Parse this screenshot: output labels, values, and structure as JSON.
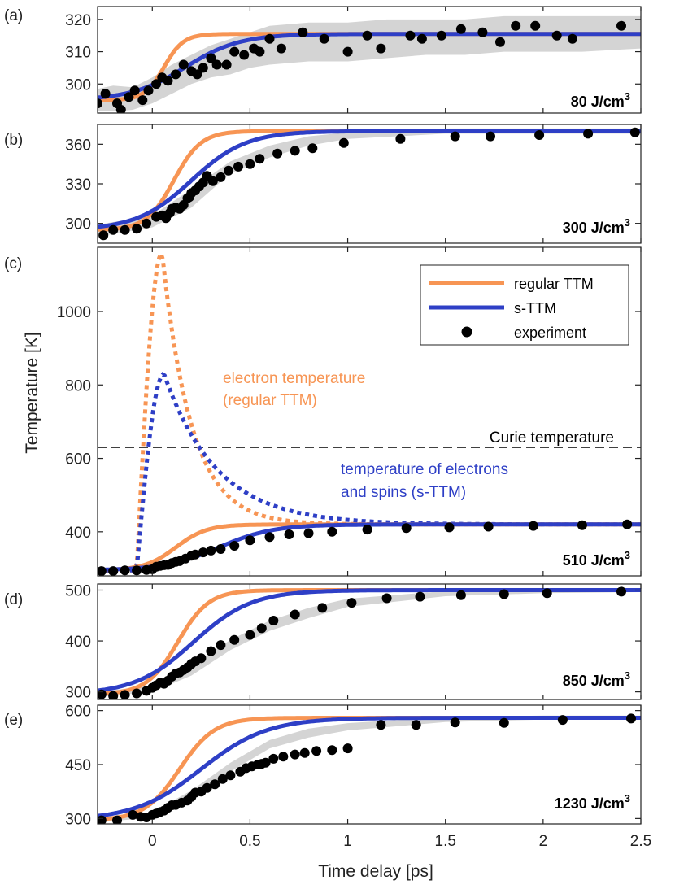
{
  "colors": {
    "ttm": "#f79554",
    "sttm": "#2e3fc6",
    "experiment": "#000000",
    "band": "#d4d4d4",
    "curie": "#000000"
  },
  "xaxis": {
    "label": "Time delay [ps]",
    "range": [
      -0.28,
      2.5
    ],
    "ticks": [
      0,
      0.5,
      1,
      1.5,
      2,
      2.5
    ],
    "tick_labels": [
      "0",
      "0.5",
      "1",
      "1.5",
      "2",
      "2.5"
    ]
  },
  "yaxis_label": "Temperature [K]",
  "legend": {
    "items": [
      {
        "label": "regular TTM",
        "kind": "ttm"
      },
      {
        "label": "s-TTM",
        "kind": "sttm"
      },
      {
        "label": "experiment",
        "kind": "experiment"
      }
    ]
  },
  "chart_data": [
    {
      "type": "line",
      "panel_label": "(a)",
      "fluence_label": "80 J/cm",
      "fluence_sup": "3",
      "ylim": [
        291,
        324
      ],
      "y_ticks": [
        300,
        310,
        320
      ],
      "y_tick_labels": [
        "300",
        "310",
        "320"
      ],
      "ttm": {
        "base": 295,
        "peak": 315.5,
        "t0": 0.06,
        "w": 0.05
      },
      "sttm": {
        "base": 295,
        "peak": 315.5,
        "t0": 0.17,
        "w": 0.14
      },
      "band": {
        "x": [
          -0.28,
          -0.2,
          -0.1,
          0,
          0.1,
          0.2,
          0.3,
          0.4,
          0.5,
          0.6,
          0.8,
          1.0,
          1.2,
          1.4,
          1.6,
          1.8,
          2.0,
          2.2,
          2.5
        ],
        "lower": [
          291.5,
          291.5,
          292,
          294,
          297,
          300,
          302,
          303,
          305,
          306,
          307,
          307,
          308,
          309,
          309,
          310,
          310,
          310,
          311
        ],
        "upper": [
          298.5,
          299.5,
          299,
          302,
          306,
          309,
          312,
          314,
          316,
          318,
          319,
          319,
          320,
          320,
          320,
          321,
          321,
          321,
          321
        ]
      },
      "experiment": {
        "x": [
          -0.28,
          -0.24,
          -0.18,
          -0.16,
          -0.12,
          -0.09,
          -0.05,
          -0.02,
          0.02,
          0.05,
          0.08,
          0.12,
          0.16,
          0.2,
          0.23,
          0.26,
          0.3,
          0.33,
          0.38,
          0.42,
          0.47,
          0.52,
          0.55,
          0.6,
          0.66,
          0.77,
          0.88,
          1.0,
          1.1,
          1.17,
          1.32,
          1.38,
          1.48,
          1.58,
          1.69,
          1.78,
          1.86,
          1.96,
          2.07,
          2.15,
          2.4
        ],
        "y": [
          294,
          297,
          294,
          292,
          296,
          298,
          295,
          298,
          300,
          302,
          301,
          303,
          306,
          304,
          303,
          305,
          308,
          306,
          306,
          310,
          309,
          311,
          310,
          314,
          311,
          316,
          314,
          310,
          315,
          311,
          315,
          314,
          315,
          317,
          316,
          313,
          318,
          318,
          315,
          314,
          318
        ]
      }
    },
    {
      "type": "line",
      "panel_label": "(b)",
      "fluence_label": "300 J/cm",
      "fluence_sup": "3",
      "ylim": [
        285,
        375
      ],
      "y_ticks": [
        300,
        330,
        360
      ],
      "y_tick_labels": [
        "300",
        "330",
        "360"
      ],
      "ttm": {
        "base": 295,
        "peak": 370,
        "t0": 0.11,
        "w": 0.07
      },
      "sttm": {
        "base": 295,
        "peak": 370,
        "t0": 0.2,
        "w": 0.14
      },
      "band": {
        "x": [
          -0.28,
          0,
          0.2,
          0.4,
          0.6,
          0.8,
          1.0,
          1.5,
          2.0,
          2.5
        ],
        "lower": [
          290,
          297,
          312,
          338,
          350,
          359,
          364,
          368,
          368,
          368
        ],
        "upper": [
          299,
          306,
          326,
          347,
          359,
          366,
          369,
          372,
          372,
          372
        ]
      },
      "experiment": {
        "x": [
          -0.25,
          -0.2,
          -0.14,
          -0.08,
          -0.03,
          0.02,
          0.05,
          0.07,
          0.09,
          0.1,
          0.12,
          0.14,
          0.16,
          0.18,
          0.19,
          0.2,
          0.22,
          0.24,
          0.26,
          0.28,
          0.31,
          0.35,
          0.39,
          0.44,
          0.5,
          0.55,
          0.64,
          0.73,
          0.82,
          0.98,
          1.27,
          1.55,
          1.73,
          1.98,
          2.23,
          2.47
        ],
        "y": [
          291,
          295,
          295,
          296,
          300,
          305,
          306,
          304,
          308,
          311,
          312,
          311,
          314,
          319,
          320,
          323,
          325,
          328,
          331,
          336,
          332,
          335,
          340,
          343,
          345,
          349,
          353,
          355,
          357,
          361,
          364,
          366,
          366,
          367,
          368,
          369
        ]
      }
    },
    {
      "type": "line",
      "panel_label": "(c)",
      "fluence_label": "510 J/cm",
      "fluence_sup": "3",
      "ylim": [
        280,
        1175
      ],
      "y_ticks": [
        400,
        600,
        800,
        1000
      ],
      "y_tick_labels": [
        "400",
        "600",
        "800",
        "1000"
      ],
      "ttm": {
        "base": 295,
        "peak": 420,
        "t0": 0.12,
        "w": 0.08
      },
      "sttm": {
        "base": 295,
        "peak": 420,
        "t0": 0.34,
        "w": 0.14
      },
      "electron_ttm": {
        "base": 295,
        "final": 420,
        "peak": 1160,
        "t_start": -0.08,
        "t_peak": 0.05,
        "tau": 0.15
      },
      "electron_sttm": {
        "base": 295,
        "final": 420,
        "peak": 830,
        "t_start": -0.08,
        "t_peak": 0.06,
        "tau": 0.27
      },
      "curie_temperature": 630,
      "curie_label": "Curie temperature",
      "annotations": {
        "electron_ttm_1": "electron temperature",
        "electron_ttm_2": "(regular TTM)",
        "electron_sttm_1": "temperature of electrons",
        "electron_sttm_2": "and spins (s-TTM)"
      },
      "experiment": {
        "x": [
          -0.26,
          -0.2,
          -0.14,
          -0.08,
          -0.03,
          0.0,
          0.02,
          0.04,
          0.06,
          0.08,
          0.1,
          0.12,
          0.14,
          0.17,
          0.2,
          0.22,
          0.26,
          0.3,
          0.35,
          0.42,
          0.5,
          0.6,
          0.7,
          0.8,
          0.92,
          1.1,
          1.3,
          1.52,
          1.72,
          1.95,
          2.2,
          2.43
        ],
        "y": [
          293,
          293,
          295,
          295,
          296,
          298,
          305,
          307,
          309,
          310,
          315,
          318,
          320,
          327,
          335,
          338,
          344,
          349,
          353,
          362,
          377,
          386,
          393,
          396,
          400,
          406,
          410,
          412,
          414,
          416,
          418,
          420
        ]
      }
    },
    {
      "type": "line",
      "panel_label": "(d)",
      "fluence_label": "850 J/cm",
      "fluence_sup": "3",
      "ylim": [
        285,
        512
      ],
      "y_ticks": [
        300,
        400,
        500
      ],
      "y_tick_labels": [
        "300",
        "400",
        "500"
      ],
      "ttm": {
        "base": 295,
        "peak": 500,
        "t0": 0.13,
        "w": 0.08
      },
      "sttm": {
        "base": 295,
        "peak": 500,
        "t0": 0.21,
        "w": 0.15
      },
      "band": {
        "x": [
          -0.28,
          0,
          0.2,
          0.4,
          0.6,
          0.8,
          1.0,
          1.5,
          2.0,
          2.5
        ],
        "lower": [
          290,
          300,
          332,
          382,
          420,
          445,
          467,
          488,
          494,
          496
        ],
        "upper": [
          300,
          312,
          352,
          402,
          440,
          465,
          483,
          498,
          502,
          502
        ]
      },
      "experiment": {
        "x": [
          -0.26,
          -0.2,
          -0.14,
          -0.08,
          -0.03,
          0.0,
          0.02,
          0.04,
          0.06,
          0.08,
          0.1,
          0.12,
          0.14,
          0.16,
          0.18,
          0.2,
          0.22,
          0.25,
          0.3,
          0.35,
          0.42,
          0.5,
          0.56,
          0.62,
          0.73,
          0.87,
          1.02,
          1.2,
          1.37,
          1.58,
          1.8,
          2.02,
          2.4
        ],
        "y": [
          295,
          292,
          294,
          297,
          302,
          308,
          313,
          318,
          316,
          322,
          330,
          336,
          338,
          343,
          348,
          355,
          360,
          366,
          380,
          392,
          402,
          412,
          425,
          440,
          452,
          465,
          475,
          484,
          487,
          490,
          492,
          494,
          497
        ]
      }
    },
    {
      "type": "line",
      "panel_label": "(e)",
      "fluence_label": "1230 J/cm",
      "fluence_sup": "3",
      "ylim": [
        285,
        615
      ],
      "y_ticks": [
        300,
        450,
        600
      ],
      "y_tick_labels": [
        "300",
        "450",
        "600"
      ],
      "ttm": {
        "base": 295,
        "peak": 580,
        "t0": 0.14,
        "w": 0.09
      },
      "sttm": {
        "base": 295,
        "peak": 580,
        "t0": 0.25,
        "w": 0.17
      },
      "band": {
        "x": [
          -0.28,
          0,
          0.2,
          0.4,
          0.6,
          0.8,
          1.0,
          1.5,
          2.0,
          2.5
        ],
        "lower": [
          290,
          302,
          350,
          430,
          495,
          525,
          545,
          568,
          575,
          578
        ],
        "upper": [
          302,
          318,
          378,
          455,
          518,
          550,
          565,
          582,
          586,
          586
        ]
      },
      "experiment": {
        "x": [
          -0.26,
          -0.18,
          -0.1,
          -0.06,
          -0.03,
          0.0,
          0.02,
          0.04,
          0.06,
          0.08,
          0.1,
          0.12,
          0.15,
          0.18,
          0.2,
          0.22,
          0.25,
          0.28,
          0.32,
          0.36,
          0.4,
          0.45,
          0.48,
          0.51,
          0.54,
          0.56,
          0.58,
          0.62,
          0.67,
          0.73,
          0.78,
          0.84,
          0.92,
          1.0,
          1.17,
          1.35,
          1.55,
          1.8,
          2.1,
          2.45
        ],
        "y": [
          295,
          295,
          310,
          305,
          303,
          310,
          314,
          318,
          322,
          330,
          337,
          338,
          344,
          350,
          360,
          372,
          375,
          385,
          395,
          410,
          420,
          430,
          440,
          445,
          450,
          452,
          455,
          466,
          472,
          478,
          482,
          488,
          490,
          495,
          560,
          560,
          567,
          566,
          574,
          578
        ]
      }
    }
  ]
}
